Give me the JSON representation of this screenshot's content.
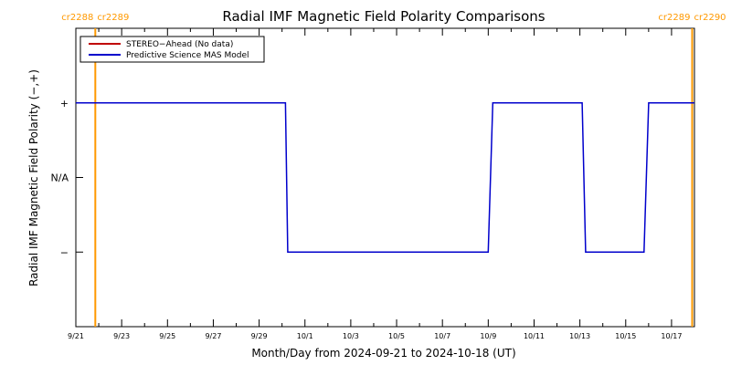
{
  "chart_data": {
    "type": "line",
    "title": "Radial IMF Magnetic Field Polarity Comparisons",
    "xlabel": "Month/Day from 2024-09-21 to 2024-10-18 (UT)",
    "ylabel": "Radial IMF Magnetic Field Polarity (−,+)",
    "x_range_days": [
      0,
      27
    ],
    "ylim": [
      -2,
      2
    ],
    "y_ticks": [
      {
        "value": 1,
        "label": "+"
      },
      {
        "value": 0,
        "label": "N/A"
      },
      {
        "value": -1,
        "label": "−"
      }
    ],
    "x_ticks": [
      {
        "day": 0,
        "label": "9/21"
      },
      {
        "day": 2,
        "label": "9/23"
      },
      {
        "day": 4,
        "label": "9/25"
      },
      {
        "day": 6,
        "label": "9/27"
      },
      {
        "day": 8,
        "label": "9/29"
      },
      {
        "day": 10,
        "label": "10/1"
      },
      {
        "day": 12,
        "label": "10/3"
      },
      {
        "day": 14,
        "label": "10/5"
      },
      {
        "day": 16,
        "label": "10/7"
      },
      {
        "day": 18,
        "label": "10/9"
      },
      {
        "day": 20,
        "label": "10/11"
      },
      {
        "day": 22,
        "label": "10/13"
      },
      {
        "day": 24,
        "label": "10/15"
      },
      {
        "day": 26,
        "label": "10/17"
      }
    ],
    "carrington_markers": [
      {
        "day": 0.85,
        "left_label": "cr2288",
        "right_label": "cr2289",
        "side": "left"
      },
      {
        "day": 26.9,
        "left_label": "cr2289",
        "right_label": "cr2290",
        "side": "right"
      }
    ],
    "series": [
      {
        "name": "STEREO−Ahead (No data)",
        "color": "#c00000",
        "points": []
      },
      {
        "name": "Predictive Science MAS Model",
        "color": "#0000cc",
        "points": [
          [
            0.0,
            1
          ],
          [
            9.15,
            1
          ],
          [
            9.25,
            -1
          ],
          [
            18.0,
            -1
          ],
          [
            18.2,
            1
          ],
          [
            22.1,
            1
          ],
          [
            22.25,
            -1
          ],
          [
            24.8,
            -1
          ],
          [
            25.0,
            1
          ],
          [
            27.0,
            1
          ]
        ]
      }
    ],
    "legend_position": "top-left",
    "marker_color": "#ff9900"
  }
}
